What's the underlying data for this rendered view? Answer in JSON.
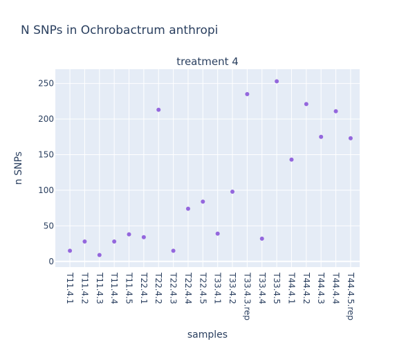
{
  "figure": {
    "title": "N SNPs in Ochrobactrum anthropi"
  },
  "chart_data": {
    "type": "scatter",
    "subplot_title": "treatment 4",
    "xlabel": "samples",
    "ylabel": "n SNPs",
    "ylim": [
      -8,
      270
    ],
    "yticks": [
      0,
      50,
      100,
      150,
      200,
      250
    ],
    "grid": true,
    "marker_color": "#9467dd",
    "plot_bg": "#e5ecf6",
    "categories": [
      "T11.4.1",
      "T11.4.2",
      "T11.4.3",
      "T11.4.4",
      "T11.4.5",
      "T22.4.1",
      "T22.4.2",
      "T22.4.3",
      "T22.4.4",
      "T22.4.5",
      "T33.4.1",
      "T33.4.2",
      "T33.4.3.rep",
      "T33.4.4",
      "T33.4.5",
      "T44.4.1",
      "T44.4.2",
      "T44.4.3",
      "T44.4.4",
      "T44.4.5.rep"
    ],
    "values": [
      15,
      28,
      9,
      28,
      38,
      34,
      213,
      15,
      74,
      84,
      39,
      98,
      235,
      32,
      253,
      143,
      221,
      175,
      211,
      173
    ]
  }
}
